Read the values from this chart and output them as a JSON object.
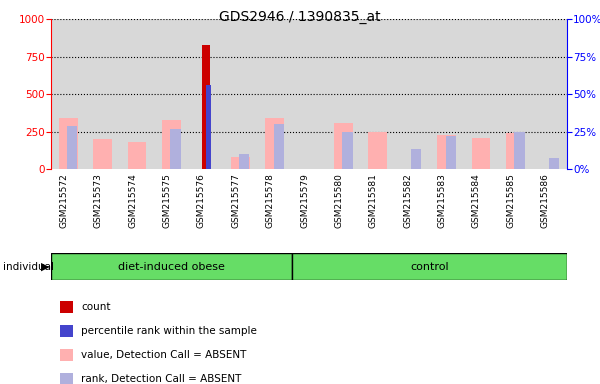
{
  "title": "GDS2946 / 1390835_at",
  "samples": [
    "GSM215572",
    "GSM215573",
    "GSM215574",
    "GSM215575",
    "GSM215576",
    "GSM215577",
    "GSM215578",
    "GSM215579",
    "GSM215580",
    "GSM215581",
    "GSM215582",
    "GSM215583",
    "GSM215584",
    "GSM215585",
    "GSM215586"
  ],
  "value_absent": [
    340,
    200,
    180,
    325,
    null,
    80,
    340,
    null,
    310,
    250,
    null,
    230,
    210,
    240,
    null
  ],
  "rank_absent": [
    290,
    null,
    null,
    270,
    null,
    100,
    300,
    null,
    250,
    null,
    130,
    220,
    null,
    250,
    70
  ],
  "count": [
    null,
    null,
    null,
    null,
    830,
    null,
    null,
    null,
    null,
    null,
    null,
    null,
    null,
    null,
    null
  ],
  "percentile_rank": [
    null,
    null,
    null,
    null,
    560,
    null,
    null,
    null,
    null,
    null,
    null,
    null,
    null,
    null,
    null
  ],
  "obese_count": 7,
  "control_count": 8,
  "ylim_left": [
    0,
    1000
  ],
  "ylim_right": [
    0,
    100
  ],
  "yticks_left": [
    0,
    250,
    500,
    750,
    1000
  ],
  "yticks_right": [
    0,
    25,
    50,
    75,
    100
  ],
  "color_count": "#cc0000",
  "color_percentile": "#4444cc",
  "color_value_absent": "#ffb0b0",
  "color_rank_absent": "#b0b0dd",
  "bg_color": "#d8d8d8",
  "group_green": "#66dd66",
  "legend_items": [
    {
      "label": "count",
      "color": "#cc0000"
    },
    {
      "label": "percentile rank within the sample",
      "color": "#4444cc"
    },
    {
      "label": "value, Detection Call = ABSENT",
      "color": "#ffb0b0"
    },
    {
      "label": "rank, Detection Call = ABSENT",
      "color": "#b0b0dd"
    }
  ]
}
